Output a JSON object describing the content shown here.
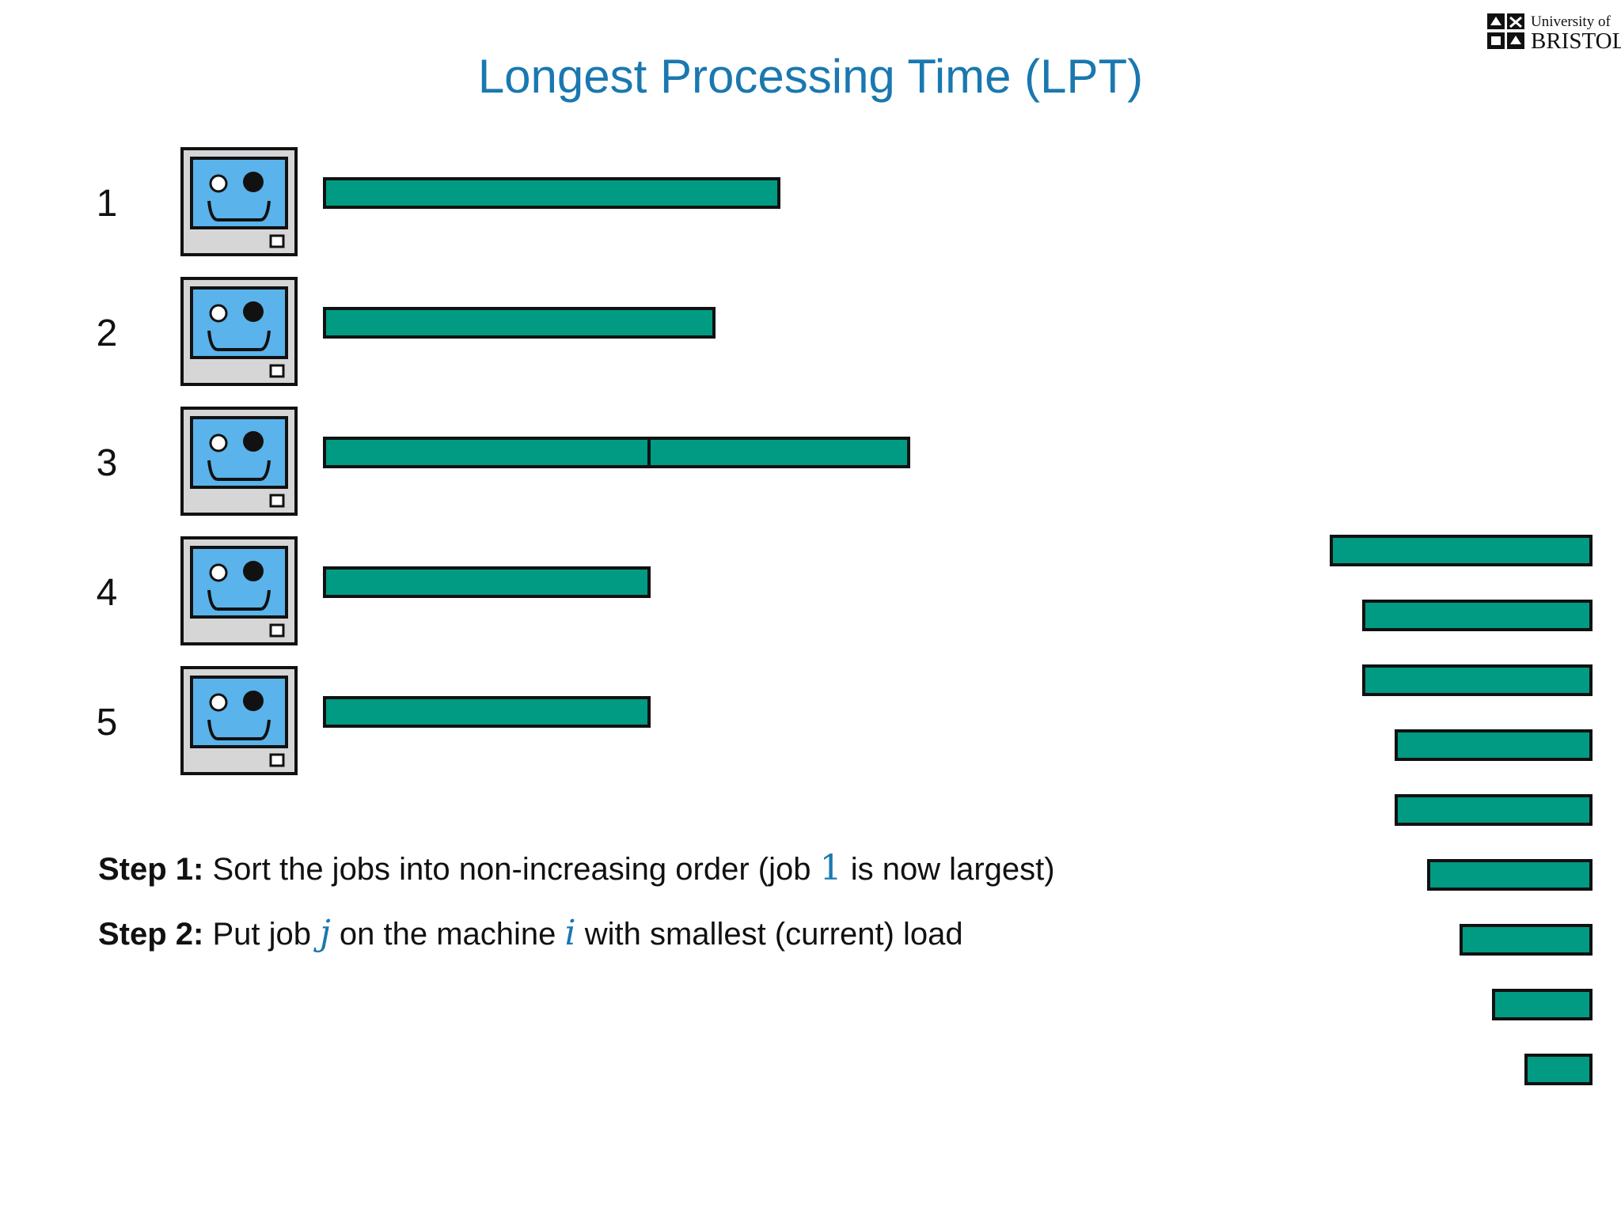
{
  "title": "Longest Processing Time (LPT)",
  "logo": {
    "line1": "University of",
    "line2": "BRISTOL"
  },
  "machines": [
    {
      "label": "1",
      "jobs": [
        7
      ]
    },
    {
      "label": "2",
      "jobs": [
        6
      ]
    },
    {
      "label": "3",
      "jobs": [
        5,
        4
      ]
    },
    {
      "label": "4",
      "jobs": [
        5
      ]
    },
    {
      "label": "5",
      "jobs": [
        5
      ]
    }
  ],
  "queue": [
    4,
    3.5,
    3.5,
    3,
    3,
    2.5,
    2,
    1.5,
    1
  ],
  "steps": [
    {
      "label": "Step 1:",
      "parts": [
        {
          "t": "text",
          "v": "Sort the jobs into non-increasing order (job "
        },
        {
          "t": "num",
          "v": "1"
        },
        {
          "t": "text",
          "v": " is now largest)"
        }
      ]
    },
    {
      "label": "Step 2:",
      "parts": [
        {
          "t": "text",
          "v": "Put job "
        },
        {
          "t": "var",
          "v": "j"
        },
        {
          "t": "text",
          "v": " on the machine "
        },
        {
          "t": "var",
          "v": "i"
        },
        {
          "t": "text",
          "v": " with smallest (current) load"
        }
      ]
    }
  ],
  "colors": {
    "job": "#009b82",
    "title": "#1a78b0",
    "screen": "#5ab3ea",
    "case": "#d6d6d6"
  }
}
